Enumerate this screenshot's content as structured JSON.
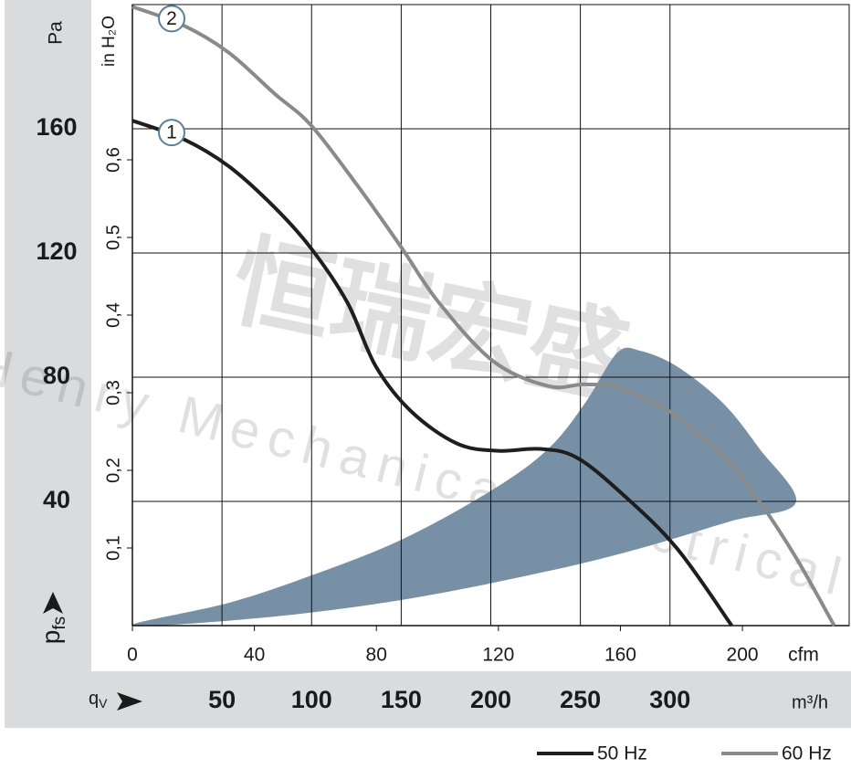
{
  "chart_data": {
    "type": "line",
    "y_unit": "Pa",
    "y2_unit": "in H₂O",
    "y_label": {
      "main": "p",
      "sub": "fs"
    },
    "x_unit": "cfm",
    "x2_unit": "m³/h",
    "x2_label": {
      "main": "q",
      "sub": "V"
    },
    "watermark": [
      "恒瑞宏盛",
      "Henry Mechanical Electrical"
    ],
    "xlim": [
      0,
      235
    ],
    "xticks": [
      0,
      40,
      80,
      120,
      160,
      200
    ],
    "x2lim": [
      0,
      400
    ],
    "x2ticks": [
      50,
      100,
      150,
      200,
      250,
      300
    ],
    "ylim": [
      0,
      200
    ],
    "yticks": [
      40,
      80,
      120,
      160
    ],
    "y2lim": [
      0,
      0.8
    ],
    "y2ticks": [
      {
        "value": 0.1,
        "label": "0,1"
      },
      {
        "value": 0.2,
        "label": "0,2"
      },
      {
        "value": 0.3,
        "label": "0,3"
      },
      {
        "value": 0.4,
        "label": "0,4"
      },
      {
        "value": 0.5,
        "label": "0,5"
      },
      {
        "value": 0.6,
        "label": "0,6"
      }
    ],
    "grid": true,
    "operating_range": {
      "color": "#7890a6",
      "x": [
        0,
        31.5,
        58.5,
        88.5,
        118.5,
        136.5,
        148.5,
        159.0,
        166.5,
        178.5,
        193.5,
        205.5,
        217.5,
        196.5,
        166.5,
        136.5,
        91.5,
        46.5
      ],
      "y": [
        0,
        7.3,
        16.1,
        27.8,
        44.0,
        57.1,
        71.8,
        87.9,
        88.5,
        83.5,
        71.8,
        57.1,
        39.6,
        33.7,
        24.9,
        17.6,
        8.8,
        2.9
      ]
    },
    "series": [
      {
        "name": "50 Hz",
        "marker": "1",
        "color": "#1e1e1e",
        "x": [
          0,
          16.5,
          31.5,
          46.5,
          58.5,
          70.5,
          79.8,
          91.5,
          106.5,
          120,
          133.5,
          145.5,
          160.5,
          178.5,
          196.5
        ],
        "values": [
          162.6,
          156.8,
          148.0,
          134.8,
          121.6,
          104.0,
          83.5,
          68.9,
          58.6,
          56.3,
          56.9,
          54.2,
          42.5,
          24.9,
          0
        ]
      },
      {
        "name": "60 Hz",
        "marker": "2",
        "color": "#8a8a8a",
        "x": [
          0,
          16.5,
          31.5,
          46.5,
          58.5,
          73.5,
          87.9,
          100.5,
          118.5,
          136.5,
          148.5,
          160.5,
          178.5,
          196.5,
          205.5,
          217.5,
          230.1
        ],
        "values": [
          199.3,
          193.4,
          184.6,
          171.4,
          161.2,
          142.1,
          122.2,
          104.0,
          85.0,
          77.1,
          77.7,
          76.2,
          67.4,
          51.3,
          40.1,
          22.0,
          0
        ]
      }
    ]
  }
}
